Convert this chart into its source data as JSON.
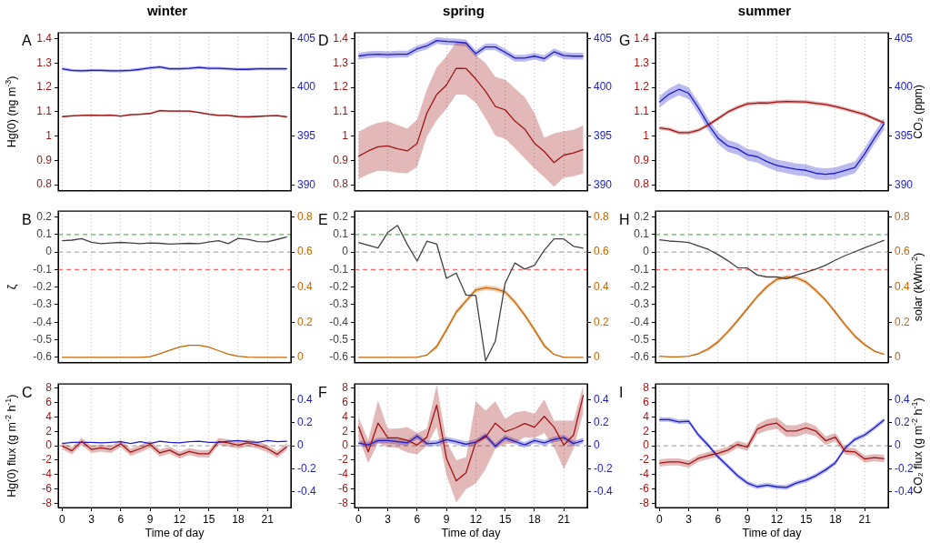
{
  "chart_data": [
    {
      "type": "line",
      "title": "winter",
      "ylabel": "Hg(0) (ng m$^{-3}$)",
      "annotations": [
        "A"
      ],
      "marker": "none",
      "grid": "x",
      "tick_labels": "y",
      "x": [
        0,
        1,
        2,
        3,
        4,
        5,
        6,
        7,
        8,
        9,
        10,
        11,
        12,
        13,
        14,
        15,
        16,
        17,
        18,
        19,
        20,
        21,
        22,
        23
      ],
      "xlim": [
        -0.4,
        23.4
      ],
      "xticks": [
        0,
        3,
        6,
        9,
        12,
        15,
        18,
        21
      ],
      "ylim": [
        0.775,
        1.425
      ],
      "yticks": [
        0.8,
        0.9,
        1,
        1.1,
        1.2,
        1.3,
        1.4
      ],
      "y2lim": [
        389.4,
        405.6
      ],
      "y2ticks": [
        390,
        395,
        400,
        405
      ],
      "series": [
        {
          "color": "#a01414",
          "values": [
            1.08,
            1.083,
            1.085,
            1.086,
            1.085,
            1.086,
            1.082,
            1.088,
            1.09,
            1.093,
            1.105,
            1.103,
            1.103,
            1.103,
            1.097,
            1.09,
            1.085,
            1.085,
            1.08,
            1.079,
            1.081,
            1.083,
            1.084,
            1.079
          ],
          "lower": [
            1.076,
            1.079,
            1.081,
            1.082,
            1.081,
            1.082,
            1.078,
            1.084,
            1.086,
            1.089,
            1.101,
            1.099,
            1.099,
            1.099,
            1.093,
            1.086,
            1.081,
            1.081,
            1.076,
            1.075,
            1.077,
            1.079,
            1.08,
            1.075
          ],
          "upper": [
            1.084,
            1.087,
            1.089,
            1.09,
            1.089,
            1.09,
            1.086,
            1.092,
            1.094,
            1.097,
            1.109,
            1.107,
            1.107,
            1.107,
            1.101,
            1.094,
            1.089,
            1.089,
            1.084,
            1.083,
            1.085,
            1.087,
            1.088,
            1.083
          ]
        },
        {
          "color": "#1c1cc8",
          "axis": "y2",
          "values": [
            401.9,
            401.75,
            401.7,
            401.75,
            401.75,
            401.7,
            401.7,
            401.75,
            401.85,
            402.0,
            402.1,
            401.9,
            401.9,
            401.95,
            402.05,
            401.95,
            401.95,
            401.9,
            401.85,
            401.85,
            401.9,
            401.9,
            401.9,
            401.9
          ],
          "lower": [
            401.75,
            401.6,
            401.55,
            401.6,
            401.6,
            401.55,
            401.55,
            401.6,
            401.7,
            401.85,
            401.95,
            401.75,
            401.75,
            401.8,
            401.9,
            401.8,
            401.8,
            401.75,
            401.7,
            401.7,
            401.75,
            401.75,
            401.75,
            401.75
          ],
          "upper": [
            402.05,
            401.9,
            401.85,
            401.9,
            401.9,
            401.85,
            401.85,
            401.9,
            402.0,
            402.15,
            402.25,
            402.05,
            402.05,
            402.1,
            402.2,
            402.1,
            402.1,
            402.05,
            402.0,
            402.0,
            402.05,
            402.05,
            402.05,
            402.05
          ]
        }
      ]
    },
    {
      "type": "line",
      "ylabel": "ζ",
      "annotations": [
        "B"
      ],
      "marker": "none",
      "grid": "x",
      "tick_labels": "y",
      "x": [
        0,
        1,
        2,
        3,
        4,
        5,
        6,
        7,
        8,
        9,
        10,
        11,
        12,
        13,
        14,
        15,
        16,
        17,
        18,
        19,
        20,
        21,
        22,
        23
      ],
      "xlim": [
        -0.4,
        23.4
      ],
      "xticks": [
        0,
        3,
        6,
        9,
        12,
        15,
        18,
        21
      ],
      "ylim": [
        -0.631,
        0.233
      ],
      "yticks": [
        -0.6,
        -0.5,
        -0.4,
        -0.3,
        -0.2,
        -0.1,
        0,
        0.1,
        0.2
      ],
      "y2lim": [
        -0.031,
        0.833
      ],
      "y2ticks": [
        0,
        0.2,
        0.4,
        0.6,
        0.8
      ],
      "ref_lines": [
        {
          "axis": "y",
          "value": 0.1,
          "color": "#5cb85c",
          "line_style": "dashed"
        },
        {
          "axis": "y",
          "value": 0,
          "color": "#aaaaaa",
          "line_style": "dashed"
        },
        {
          "axis": "y",
          "value": -0.1,
          "color": "#ff6666",
          "line_style": "dashed"
        }
      ],
      "series": [
        {
          "color": "#404040",
          "values": [
            0.065,
            0.068,
            0.077,
            0.056,
            0.048,
            0.052,
            0.055,
            0.052,
            0.048,
            0.052,
            0.05,
            0.045,
            0.048,
            0.05,
            0.048,
            0.057,
            0.065,
            0.048,
            0.078,
            0.073,
            0.06,
            0.058,
            0.072,
            0.087
          ]
        },
        {
          "color": "#c86400",
          "axis": "y2",
          "values": [
            0,
            0,
            0,
            0,
            0,
            0,
            0,
            0,
            0,
            0.004,
            0.02,
            0.04,
            0.058,
            0.068,
            0.068,
            0.058,
            0.038,
            0.018,
            0.006,
            0.001,
            0,
            0,
            0,
            0
          ]
        }
      ]
    },
    {
      "type": "line",
      "ylabel": "Hg(0) flux (g m$^{-2}$ h$^{-1}$)",
      "xlabel": "Time of day",
      "annotations": [
        "C"
      ],
      "marker": "none",
      "grid": "x",
      "x": [
        0,
        1,
        2,
        3,
        4,
        5,
        6,
        7,
        8,
        9,
        10,
        11,
        12,
        13,
        14,
        15,
        16,
        17,
        18,
        19,
        20,
        21,
        22,
        23
      ],
      "xlim": [
        -0.4,
        23.4
      ],
      "xticks": [
        0,
        3,
        6,
        9,
        12,
        15,
        18,
        21
      ],
      "ylim": [
        -8.6,
        8.6
      ],
      "yticks": [
        -8,
        -6,
        -4,
        -2,
        0,
        2,
        4,
        6,
        8
      ],
      "y2lim": [
        -0.54,
        0.54
      ],
      "y2ticks": [
        -0.4,
        -0.2,
        0,
        0.2,
        0.4
      ],
      "ref_lines": [
        {
          "axis": "y",
          "value": 0,
          "color": "#aaaaaa",
          "line_style": "dashed"
        }
      ],
      "series": [
        {
          "color": "#a01414",
          "values": [
            0,
            -0.7,
            0.6,
            -0.5,
            -0.3,
            -0.5,
            0.3,
            -0.9,
            -0.4,
            0.2,
            -1.0,
            -0.6,
            -1.3,
            -0.8,
            -1.1,
            -1.1,
            0.6,
            0.4,
            0.1,
            0.4,
            0.1,
            -0.4,
            -1.2,
            -0.1
          ],
          "lower": [
            -0.5,
            -1.2,
            0.1,
            -1.0,
            -0.8,
            -1.0,
            -0.2,
            -1.4,
            -0.9,
            -0.3,
            -1.5,
            -1.1,
            -1.8,
            -1.3,
            -1.6,
            -1.6,
            0.1,
            -0.1,
            -0.4,
            -0.1,
            -0.4,
            -0.9,
            -1.7,
            -0.6
          ],
          "upper": [
            0.5,
            -0.2,
            1.1,
            0,
            0.2,
            0,
            0.8,
            -0.4,
            0.1,
            0.7,
            -0.5,
            -0.1,
            -0.8,
            -0.3,
            -0.6,
            -0.6,
            1.1,
            0.9,
            0.6,
            0.9,
            0.6,
            0.1,
            -0.7,
            0.4
          ]
        },
        {
          "color": "#1c1cc8",
          "axis": "y2",
          "values": [
            0.02,
            0.03,
            0.03,
            0.03,
            0.025,
            0.03,
            0.035,
            0.02,
            0.035,
            0.02,
            0.04,
            0.03,
            0.025,
            0.035,
            0.04,
            0.03,
            0.03,
            0.04,
            0.045,
            0.035,
            0.03,
            0.045,
            0.035,
            0.04
          ]
        }
      ]
    },
    {
      "type": "line",
      "title": "spring",
      "annotations": [
        "D"
      ],
      "marker": "none",
      "grid": "x",
      "tick_labels": "y",
      "x": [
        0,
        1,
        2,
        3,
        4,
        5,
        6,
        7,
        8,
        9,
        10,
        11,
        12,
        13,
        14,
        15,
        16,
        17,
        18,
        19,
        20,
        21,
        22,
        23
      ],
      "xlim": [
        -0.4,
        23.4
      ],
      "xticks": [
        0,
        3,
        6,
        9,
        12,
        15,
        18,
        21
      ],
      "ylim": [
        0.775,
        1.425
      ],
      "yticks": [
        0.8,
        0.9,
        1,
        1.1,
        1.2,
        1.3,
        1.4
      ],
      "y2lim": [
        389.4,
        405.6
      ],
      "y2ticks": [
        390,
        395,
        400,
        405
      ],
      "series": [
        {
          "color": "#a01414",
          "values": [
            0.917,
            0.939,
            0.956,
            0.96,
            0.948,
            0.939,
            0.97,
            1.095,
            1.171,
            1.21,
            1.279,
            1.278,
            1.235,
            1.184,
            1.122,
            1.108,
            1.062,
            1.029,
            0.971,
            0.937,
            0.891,
            0.922,
            0.931,
            0.945
          ],
          "lower": [
            0.823,
            0.843,
            0.857,
            0.856,
            0.849,
            0.847,
            0.873,
            0.999,
            1.065,
            1.113,
            1.172,
            1.169,
            1.137,
            1.073,
            1.001,
            0.989,
            0.951,
            0.909,
            0.867,
            0.831,
            0.792,
            0.829,
            0.835,
            0.846
          ],
          "upper": [
            1.017,
            1.04,
            1.055,
            1.061,
            1.045,
            1.031,
            1.068,
            1.193,
            1.283,
            1.328,
            1.388,
            1.386,
            1.334,
            1.3,
            1.244,
            1.232,
            1.196,
            1.16,
            1.095,
            0.993,
            1.011,
            1.02,
            1.026,
            1.044
          ]
        },
        {
          "color": "#1c1cc8",
          "axis": "y2",
          "values": [
            403.2,
            403.35,
            403.4,
            403.35,
            403.4,
            403.4,
            403.95,
            404.25,
            404.8,
            404.7,
            404.65,
            404.55,
            403.45,
            404.15,
            404.15,
            403.6,
            403.0,
            403.0,
            403.2,
            402.95,
            403.65,
            403.25,
            403.2,
            403.2
          ],
          "lower": [
            402.85,
            403.0,
            403.05,
            403.0,
            403.05,
            403.05,
            403.6,
            403.9,
            404.45,
            404.35,
            404.3,
            404.2,
            403.1,
            403.8,
            403.8,
            403.25,
            402.65,
            402.65,
            402.85,
            402.6,
            403.3,
            402.9,
            402.85,
            402.85
          ],
          "upper": [
            403.55,
            403.7,
            403.75,
            403.7,
            403.75,
            403.75,
            404.3,
            404.6,
            405.15,
            405.05,
            405.0,
            404.9,
            403.8,
            404.5,
            404.5,
            403.95,
            403.35,
            403.35,
            403.55,
            403.3,
            404.0,
            403.6,
            403.55,
            403.55
          ]
        }
      ]
    },
    {
      "type": "line",
      "annotations": [
        "E"
      ],
      "marker": "none",
      "grid": "x",
      "tick_labels": "y",
      "x": [
        0,
        1,
        2,
        3,
        4,
        5,
        6,
        7,
        8,
        9,
        10,
        11,
        12,
        13,
        14,
        15,
        16,
        17,
        18,
        19,
        20,
        21,
        22,
        23
      ],
      "xlim": [
        -0.4,
        23.4
      ],
      "xticks": [
        0,
        3,
        6,
        9,
        12,
        15,
        18,
        21
      ],
      "ylim": [
        -0.631,
        0.233
      ],
      "yticks": [
        -0.6,
        -0.5,
        -0.4,
        -0.3,
        -0.2,
        -0.1,
        0,
        0.1,
        0.2
      ],
      "y2lim": [
        -0.031,
        0.833
      ],
      "y2ticks": [
        0,
        0.2,
        0.4,
        0.6,
        0.8
      ],
      "ref_lines": [
        {
          "axis": "y",
          "value": 0.1,
          "color": "#5cb85c",
          "line_style": "dashed"
        },
        {
          "axis": "y",
          "value": 0,
          "color": "#aaaaaa",
          "line_style": "dashed"
        },
        {
          "axis": "y",
          "value": -0.1,
          "color": "#ff6666",
          "line_style": "dashed"
        }
      ],
      "series": [
        {
          "color": "#404040",
          "values": [
            0.055,
            0.039,
            0.023,
            0.112,
            0.152,
            0.043,
            -0.051,
            0.062,
            0.046,
            -0.15,
            -0.12,
            -0.245,
            -0.248,
            -0.619,
            -0.508,
            -0.178,
            -0.062,
            -0.097,
            -0.075,
            0.01,
            0.075,
            0.075,
            0.033,
            0.022
          ]
        },
        {
          "color": "#c86400",
          "axis": "y2",
          "values": [
            0,
            0,
            0,
            0,
            0,
            0,
            0,
            0.013,
            0.061,
            0.157,
            0.257,
            0.321,
            0.384,
            0.397,
            0.39,
            0.373,
            0.315,
            0.241,
            0.157,
            0.067,
            0.016,
            0,
            0,
            0
          ],
          "lower": [
            0,
            0,
            0,
            0,
            0,
            0,
            0,
            0.013,
            0.046,
            0.142,
            0.242,
            0.306,
            0.369,
            0.382,
            0.375,
            0.358,
            0.3,
            0.226,
            0.142,
            0.052,
            0.016,
            0,
            0,
            0
          ],
          "upper": [
            0,
            0,
            0,
            0,
            0,
            0,
            0,
            0.013,
            0.076,
            0.172,
            0.272,
            0.336,
            0.399,
            0.412,
            0.405,
            0.388,
            0.33,
            0.256,
            0.172,
            0.082,
            0.016,
            0,
            0,
            0
          ]
        }
      ]
    },
    {
      "type": "line",
      "xlabel": "Time of day",
      "annotations": [
        "F"
      ],
      "marker": "none",
      "grid": "x",
      "x": [
        0,
        1,
        2,
        3,
        4,
        5,
        6,
        7,
        8,
        9,
        10,
        11,
        12,
        13,
        14,
        15,
        16,
        17,
        18,
        19,
        20,
        21,
        22,
        23
      ],
      "xlim": [
        -0.4,
        23.4
      ],
      "xticks": [
        0,
        3,
        6,
        9,
        12,
        15,
        18,
        21
      ],
      "ylim": [
        -8.6,
        8.6
      ],
      "yticks": [
        -8,
        -6,
        -4,
        -2,
        0,
        2,
        4,
        6,
        8
      ],
      "y2lim": [
        -0.54,
        0.54
      ],
      "y2ticks": [
        -0.4,
        -0.2,
        0,
        0.2,
        0.4
      ],
      "ref_lines": [
        {
          "axis": "y",
          "value": 0,
          "color": "#aaaaaa",
          "line_style": "dashed"
        }
      ],
      "series": [
        {
          "color": "#a01414",
          "values": [
            2.7,
            -0.85,
            3.15,
            1.1,
            1.1,
            0.75,
            0.1,
            1.2,
            5.65,
            -1.75,
            -4.9,
            -3.75,
            0.5,
            1.2,
            3.15,
            1.95,
            2.45,
            3.1,
            2.6,
            4.1,
            2.6,
            0.1,
            1.5,
            7.05
          ],
          "lower": [
            1.2,
            -2.4,
            0.4,
            -0.2,
            -0.3,
            -0.95,
            -1.2,
            0,
            2.6,
            -4.05,
            -7.9,
            -6.05,
            -5.25,
            -3.25,
            -0.4,
            0.2,
            0.4,
            1.2,
            1.1,
            1.8,
            -0.2,
            -3.25,
            -0.4,
            4.65
          ],
          "upper": [
            4.0,
            0.8,
            6.3,
            2.4,
            2.4,
            2.6,
            1.8,
            2.4,
            8.5,
            0.6,
            -2.0,
            -1.6,
            6.2,
            4.9,
            6.2,
            3.75,
            4.65,
            4.85,
            4.45,
            6.45,
            3.5,
            3.5,
            3.5,
            8.5
          ]
        },
        {
          "color": "#1c1cc8",
          "axis": "y2",
          "values": [
            0.023,
            0.008,
            0.046,
            0.046,
            0.036,
            0.025,
            0.084,
            0.018,
            0.023,
            0.054,
            0.036,
            0.013,
            0.031,
            0.089,
            -0.003,
            0.069,
            0.038,
            0.008,
            0.046,
            0.025,
            0.056,
            0.071,
            0.02,
            0.046
          ],
          "lower": [
            -0.002,
            -0.017,
            0.021,
            0.021,
            0.011,
            0,
            0.059,
            -0.007,
            -0.002,
            0.029,
            0.011,
            -0.012,
            0.006,
            0.064,
            -0.028,
            0.044,
            0.013,
            -0.017,
            0.021,
            0,
            0.031,
            0.046,
            -0.005,
            0.021
          ],
          "upper": [
            0.048,
            0.033,
            0.071,
            0.071,
            0.061,
            0.05,
            0.109,
            0.043,
            0.048,
            0.079,
            0.061,
            0.038,
            0.056,
            0.114,
            0.022,
            0.094,
            0.063,
            0.033,
            0.071,
            0.05,
            0.081,
            0.096,
            0.045,
            0.071
          ]
        }
      ]
    },
    {
      "type": "line",
      "title": "summer",
      "y2label": "CO₂ (ppm)",
      "annotations": [
        "G"
      ],
      "marker": "none",
      "grid": "x",
      "tick_labels": "y",
      "x": [
        0,
        1,
        2,
        3,
        4,
        5,
        6,
        7,
        8,
        9,
        10,
        11,
        12,
        13,
        14,
        15,
        16,
        17,
        18,
        19,
        20,
        21,
        22,
        23
      ],
      "xlim": [
        -0.4,
        23.4
      ],
      "xticks": [
        0,
        3,
        6,
        9,
        12,
        15,
        18,
        21
      ],
      "ylim": [
        0.775,
        1.425
      ],
      "yticks": [
        0.8,
        0.9,
        1,
        1.1,
        1.2,
        1.3,
        1.4
      ],
      "y2lim": [
        389.4,
        405.6
      ],
      "y2ticks": [
        390,
        395,
        400,
        405
      ],
      "series": [
        {
          "color": "#a01414",
          "values": [
            1.034,
            1.028,
            1.014,
            1.014,
            1.024,
            1.046,
            1.072,
            1.099,
            1.118,
            1.133,
            1.136,
            1.136,
            1.14,
            1.142,
            1.141,
            1.14,
            1.135,
            1.13,
            1.122,
            1.111,
            1.1,
            1.089,
            1.071,
            1.054
          ],
          "lower": [
            1.026,
            1.02,
            1.006,
            1.006,
            1.016,
            1.038,
            1.064,
            1.091,
            1.11,
            1.125,
            1.128,
            1.128,
            1.132,
            1.134,
            1.133,
            1.132,
            1.127,
            1.122,
            1.114,
            1.103,
            1.092,
            1.081,
            1.063,
            1.046
          ],
          "upper": [
            1.042,
            1.036,
            1.022,
            1.022,
            1.032,
            1.054,
            1.08,
            1.107,
            1.126,
            1.141,
            1.144,
            1.144,
            1.148,
            1.15,
            1.149,
            1.148,
            1.143,
            1.138,
            1.13,
            1.119,
            1.108,
            1.097,
            1.079,
            1.062
          ]
        },
        {
          "color": "#1c1cc8",
          "axis": "y2",
          "values": [
            398.5,
            399.3,
            399.8,
            399.4,
            397.9,
            396.2,
            394.8,
            394.0,
            393.7,
            393.1,
            392.9,
            392.4,
            392.0,
            391.8,
            391.6,
            391.5,
            391.2,
            391.1,
            391.2,
            391.5,
            391.8,
            393.2,
            394.8,
            396.3
          ],
          "lower": [
            397.9,
            398.7,
            399.2,
            398.8,
            397.3,
            395.6,
            394.2,
            393.4,
            393.1,
            392.5,
            392.3,
            391.8,
            391.4,
            391.2,
            391.0,
            390.9,
            390.6,
            390.5,
            390.6,
            390.9,
            391.2,
            392.6,
            394.2,
            395.7
          ],
          "upper": [
            399.1,
            399.9,
            400.4,
            400.0,
            398.5,
            396.8,
            395.4,
            394.6,
            394.3,
            393.7,
            393.5,
            393.0,
            392.6,
            392.4,
            392.2,
            392.1,
            391.8,
            391.7,
            391.8,
            392.1,
            392.4,
            393.8,
            395.4,
            396.9
          ]
        }
      ]
    },
    {
      "type": "line",
      "y2label": "solar (kWm$^{-2}$)",
      "annotations": [
        "H"
      ],
      "marker": "none",
      "grid": "x",
      "tick_labels": "y",
      "x": [
        0,
        1,
        2,
        3,
        4,
        5,
        6,
        7,
        8,
        9,
        10,
        11,
        12,
        13,
        14,
        15,
        16,
        17,
        18,
        19,
        20,
        21,
        22,
        23
      ],
      "xlim": [
        -0.4,
        23.4
      ],
      "xticks": [
        0,
        3,
        6,
        9,
        12,
        15,
        18,
        21
      ],
      "ylim": [
        -0.631,
        0.233
      ],
      "yticks": [
        -0.6,
        -0.5,
        -0.4,
        -0.3,
        -0.2,
        -0.1,
        0,
        0.1,
        0.2
      ],
      "y2lim": [
        -0.031,
        0.833
      ],
      "y2ticks": [
        0,
        0.2,
        0.4,
        0.6,
        0.8
      ],
      "ref_lines": [
        {
          "axis": "y",
          "value": 0.1,
          "color": "#5cb85c",
          "line_style": "dashed"
        },
        {
          "axis": "y",
          "value": 0,
          "color": "#aaaaaa",
          "line_style": "dashed"
        },
        {
          "axis": "y",
          "value": -0.1,
          "color": "#ff6666",
          "line_style": "dashed"
        }
      ],
      "series": [
        {
          "color": "#404040",
          "values": [
            0.07,
            0.063,
            0.06,
            0.054,
            0.035,
            0.015,
            -0.014,
            -0.049,
            -0.089,
            -0.091,
            -0.131,
            -0.142,
            -0.142,
            -0.153,
            -0.131,
            -0.115,
            -0.097,
            -0.075,
            -0.046,
            -0.02,
            0.002,
            0.025,
            0.046,
            0.067
          ]
        },
        {
          "color": "#c86400",
          "axis": "y2",
          "values": [
            0.006,
            0.002,
            0.002,
            0.006,
            0.021,
            0.047,
            0.088,
            0.145,
            0.209,
            0.278,
            0.345,
            0.402,
            0.445,
            0.458,
            0.454,
            0.429,
            0.381,
            0.326,
            0.257,
            0.185,
            0.12,
            0.072,
            0.035,
            0.016
          ],
          "lower": [
            0.006,
            0.002,
            0.002,
            0.006,
            0.015,
            0.037,
            0.076,
            0.133,
            0.197,
            0.266,
            0.333,
            0.39,
            0.433,
            0.446,
            0.442,
            0.417,
            0.369,
            0.314,
            0.245,
            0.173,
            0.108,
            0.062,
            0.029,
            0.016
          ],
          "upper": [
            0.006,
            0.002,
            0.002,
            0.006,
            0.027,
            0.057,
            0.1,
            0.157,
            0.221,
            0.29,
            0.357,
            0.414,
            0.457,
            0.47,
            0.466,
            0.441,
            0.393,
            0.338,
            0.269,
            0.197,
            0.132,
            0.082,
            0.041,
            0.016
          ]
        }
      ]
    },
    {
      "type": "line",
      "y2label": "CO₂ flux (g m$^{-2}$ h$^{-1}$)",
      "xlabel": "Time of day",
      "annotations": [
        "I"
      ],
      "marker": "none",
      "grid": "x",
      "x": [
        0,
        1,
        2,
        3,
        4,
        5,
        6,
        7,
        8,
        9,
        10,
        11,
        12,
        13,
        14,
        15,
        16,
        17,
        18,
        19,
        20,
        21,
        22,
        23
      ],
      "xlim": [
        -0.4,
        23.4
      ],
      "xticks": [
        0,
        3,
        6,
        9,
        12,
        15,
        18,
        21
      ],
      "ylim": [
        -8.6,
        8.6
      ],
      "yticks": [
        -8,
        -6,
        -4,
        -2,
        0,
        2,
        4,
        6,
        8
      ],
      "y2lim": [
        -0.54,
        0.54
      ],
      "y2ticks": [
        -0.4,
        -0.2,
        0,
        0.2,
        0.4
      ],
      "ref_lines": [
        {
          "axis": "y",
          "value": 0,
          "color": "#aaaaaa",
          "line_style": "dashed"
        }
      ],
      "series": [
        {
          "color": "#a01414",
          "values": [
            -2.4,
            -2.25,
            -2.25,
            -2.55,
            -1.75,
            -1.35,
            -1.05,
            -0.6,
            0.2,
            -0.2,
            2.3,
            2.9,
            3.15,
            2.05,
            2.05,
            2.5,
            2.05,
            0.7,
            1.2,
            -0.75,
            -0.85,
            -1.85,
            -1.65,
            -1.8
          ],
          "lower": [
            -2.9,
            -2.75,
            -2.75,
            -3.05,
            -2.25,
            -1.85,
            -1.55,
            -1.1,
            -0.3,
            -0.7,
            1.6,
            2.1,
            2.35,
            1.25,
            1.25,
            1.7,
            1.35,
            0.1,
            0.6,
            -1.25,
            -1.35,
            -2.35,
            -2.15,
            -2.3
          ],
          "upper": [
            -1.9,
            -1.75,
            -1.75,
            -2.05,
            -1.25,
            -0.85,
            -0.55,
            -0.1,
            0.7,
            0.3,
            3.0,
            3.7,
            3.95,
            2.85,
            2.85,
            3.3,
            2.75,
            1.3,
            1.8,
            -0.25,
            -0.35,
            -1.35,
            -1.15,
            -1.3
          ]
        },
        {
          "color": "#1c1cc8",
          "axis": "y2",
          "values": [
            0.229,
            0.229,
            0.209,
            0.214,
            0.094,
            0.005,
            -0.097,
            -0.178,
            -0.262,
            -0.326,
            -0.359,
            -0.344,
            -0.359,
            -0.364,
            -0.326,
            -0.301,
            -0.262,
            -0.211,
            -0.148,
            -0.02,
            0.056,
            0.094,
            0.158,
            0.227
          ],
          "lower": [
            0.209,
            0.209,
            0.189,
            0.194,
            0.074,
            -0.015,
            -0.117,
            -0.198,
            -0.282,
            -0.346,
            -0.379,
            -0.364,
            -0.379,
            -0.384,
            -0.346,
            -0.321,
            -0.282,
            -0.231,
            -0.168,
            -0.04,
            0.036,
            0.074,
            0.138,
            0.207
          ],
          "upper": [
            0.249,
            0.249,
            0.229,
            0.234,
            0.114,
            0.025,
            -0.077,
            -0.158,
            -0.242,
            -0.306,
            -0.339,
            -0.324,
            -0.339,
            -0.344,
            -0.306,
            -0.281,
            -0.242,
            -0.191,
            -0.128,
            0,
            0.076,
            0.114,
            0.178,
            0.247
          ]
        }
      ]
    }
  ]
}
